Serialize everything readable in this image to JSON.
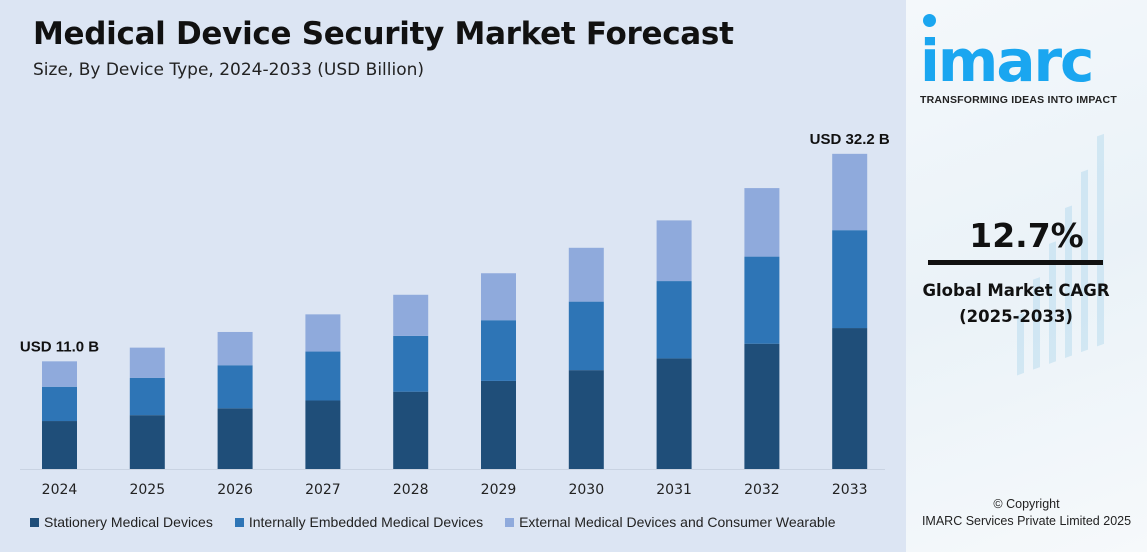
{
  "chart_data": {
    "type": "bar",
    "stacked": true,
    "title": "Medical Device Security Market Forecast",
    "subtitle": "Size, By Device Type, 2024-2033 (USD Billion)",
    "xlabel": "",
    "ylabel": "",
    "grid": false,
    "legend_position": "bottom",
    "categories": [
      "2024",
      "2025",
      "2026",
      "2027",
      "2028",
      "2029",
      "2030",
      "2031",
      "2032",
      "2033"
    ],
    "series": [
      {
        "name": "Stationery Medical Devices",
        "color": "#1f4e79",
        "values": [
          4.9,
          5.5,
          6.2,
          7.0,
          7.9,
          9.0,
          10.1,
          11.3,
          12.8,
          14.4
        ]
      },
      {
        "name": "Internally Embedded Medical Devices",
        "color": "#2e75b6",
        "values": [
          3.5,
          3.8,
          4.4,
          5.0,
          5.7,
          6.2,
          7.0,
          7.9,
          8.9,
          10.0
        ]
      },
      {
        "name": "External Medical Devices and Consumer Wearable",
        "color": "#8faadc",
        "values": [
          2.6,
          3.1,
          3.4,
          3.8,
          4.2,
          4.8,
          5.5,
          6.2,
          7.0,
          7.8
        ]
      }
    ],
    "annotations": [
      {
        "category": "2024",
        "text": "USD 11.0 B"
      },
      {
        "category": "2033",
        "text": "USD 32.2 B"
      }
    ],
    "ylim": [
      0,
      33
    ]
  },
  "sidebar": {
    "logo": "imarc",
    "tagline": "TRANSFORMING IDEAS INTO IMPACT",
    "cagr_value": "12.7%",
    "cagr_label": "Global Market CAGR",
    "cagr_period": "(2025-2033)",
    "copyright_line1": "© Copyright",
    "copyright_line2": "IMARC Services Private Limited 2025",
    "brand_color": "#1aa6f0"
  }
}
